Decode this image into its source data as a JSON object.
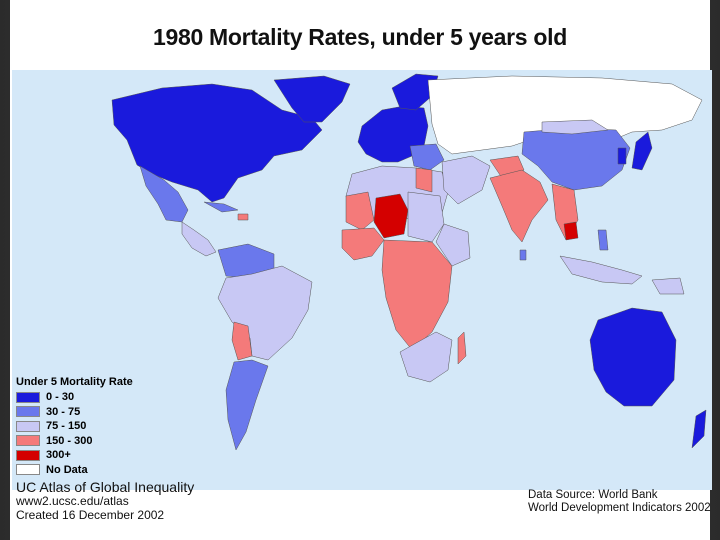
{
  "title": "1980 Mortality Rates, under 5 years old",
  "legend": {
    "title": "Under 5 Mortality Rate",
    "items": [
      {
        "label": "0 - 30",
        "color": "#1a1adc"
      },
      {
        "label": "30 - 75",
        "color": "#6a78ec"
      },
      {
        "label": "75 - 150",
        "color": "#c8c8f4"
      },
      {
        "label": "150 - 300",
        "color": "#f47a7a"
      },
      {
        "label": "300+",
        "color": "#d40000"
      },
      {
        "label": "No Data",
        "color": "#ffffff"
      }
    ]
  },
  "credits": {
    "line1": "UC Atlas of Global Inequality",
    "line2": "www2.ucsc.edu/atlas",
    "line3": "Created 16 December 2002"
  },
  "source": {
    "line1": "Data Source: World Bank",
    "line2": "World Development Indicators 2002"
  },
  "colors": {
    "ocean": "#d4e8f8",
    "c0_30": "#1a1adc",
    "c30_75": "#6a78ec",
    "c75_150": "#c8c8f4",
    "c150_300": "#f47a7a",
    "c300": "#d40000",
    "nodata": "#ffffff"
  }
}
